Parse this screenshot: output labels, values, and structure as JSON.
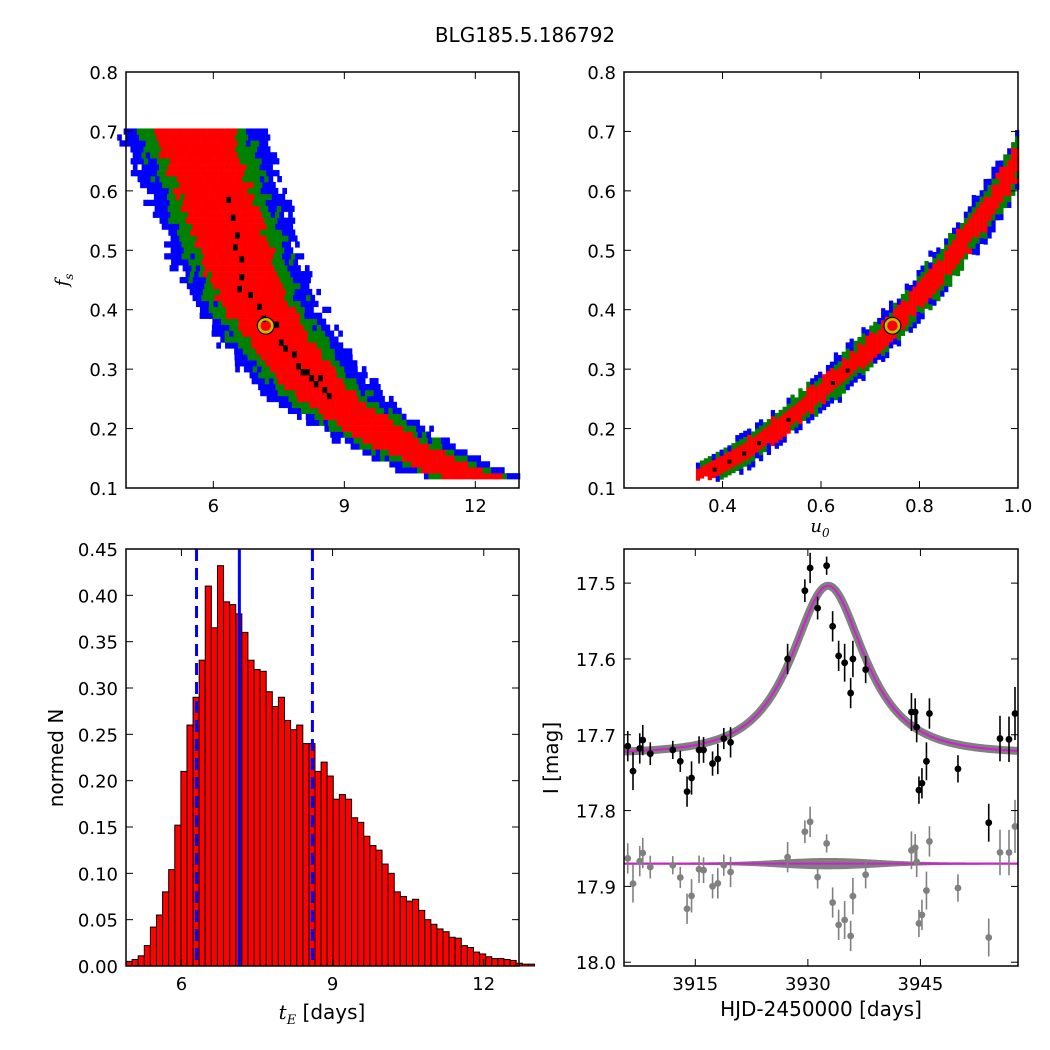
{
  "title": "BLG185.5.186792",
  "chart_data": [
    {
      "id": "fs_vs_tE",
      "type": "heatmap",
      "xlabel": "",
      "ylabel": "f",
      "ylabel_sub": "s",
      "xlim": [
        4.0,
        13.0
      ],
      "ylim": [
        0.1,
        0.8
      ],
      "xticks": [
        6,
        9,
        12
      ],
      "yticks": [
        0.1,
        0.2,
        0.3,
        0.4,
        0.5,
        0.6,
        0.7,
        0.8
      ],
      "levels": [
        {
          "name": "3 sigma",
          "color": "#0000ff"
        },
        {
          "name": "2 sigma",
          "color": "#008000"
        },
        {
          "name": "1 sigma",
          "color": "#ff0000"
        },
        {
          "name": "best cells",
          "color": "#000000"
        }
      ],
      "best_fit": {
        "x": 7.2,
        "y": 0.373,
        "color": "#bfbf00"
      },
      "banana": {
        "spine": [
          [
            5.5,
            0.7
          ],
          [
            5.85,
            0.62
          ],
          [
            6.2,
            0.55
          ],
          [
            6.5,
            0.48
          ],
          [
            6.9,
            0.41
          ],
          [
            7.4,
            0.35
          ],
          [
            8.0,
            0.29
          ],
          [
            8.7,
            0.24
          ],
          [
            9.5,
            0.2
          ],
          [
            10.4,
            0.16
          ],
          [
            11.3,
            0.13
          ],
          [
            12.0,
            0.11
          ]
        ],
        "half_width": [
          0.4,
          0.75,
          1.05,
          1.4
        ],
        "black_cells": [
          [
            6.4,
            0.55
          ],
          [
            6.5,
            0.52
          ],
          [
            6.45,
            0.5
          ],
          [
            6.6,
            0.48
          ],
          [
            6.6,
            0.45
          ],
          [
            6.55,
            0.43
          ],
          [
            6.8,
            0.42
          ],
          [
            7.1,
            0.38
          ],
          [
            7.4,
            0.37
          ],
          [
            7.5,
            0.34
          ],
          [
            7.6,
            0.33
          ],
          [
            7.8,
            0.32
          ],
          [
            7.9,
            0.3
          ],
          [
            8.0,
            0.29
          ],
          [
            8.2,
            0.28
          ],
          [
            8.3,
            0.27
          ],
          [
            8.5,
            0.26
          ],
          [
            8.6,
            0.25
          ],
          [
            8.1,
            0.29
          ],
          [
            8.4,
            0.28
          ],
          [
            6.3,
            0.58
          ],
          [
            7.0,
            0.4
          ]
        ]
      }
    },
    {
      "id": "fs_vs_u0",
      "type": "heatmap",
      "xlabel": "u",
      "xlabel_sub": "0",
      "ylabel": "",
      "xlim": [
        0.2,
        1.0
      ],
      "ylim": [
        0.1,
        0.8
      ],
      "xticks": [
        0.4,
        0.6,
        0.8,
        1.0
      ],
      "xtick_labels": [
        "0.4",
        "0.6",
        "0.8",
        "1.0"
      ],
      "yticks": [
        0.1,
        0.2,
        0.3,
        0.4,
        0.5,
        0.6,
        0.7,
        0.8
      ],
      "best_fit": {
        "x": 0.745,
        "y": 0.373,
        "color": "#bfbf00"
      },
      "band": {
        "spine": [
          [
            0.34,
            0.11
          ],
          [
            0.45,
            0.16
          ],
          [
            0.55,
            0.225
          ],
          [
            0.65,
            0.295
          ],
          [
            0.75,
            0.375
          ],
          [
            0.85,
            0.47
          ],
          [
            0.93,
            0.56
          ],
          [
            1.0,
            0.65
          ]
        ],
        "half_width": [
          0.008,
          0.016,
          0.024,
          0.03
        ]
      }
    },
    {
      "id": "tE_hist",
      "type": "bar",
      "xlabel": "t",
      "xlabel_sub": "E",
      "xlabel_rest": " [days]",
      "ylabel": "normed N",
      "xlim": [
        4.9,
        12.7
      ],
      "ylim": [
        0.0,
        0.45
      ],
      "xticks": [
        6,
        9,
        12
      ],
      "yticks": [
        0.0,
        0.05,
        0.1,
        0.15,
        0.2,
        0.25,
        0.3,
        0.35,
        0.4,
        0.45
      ],
      "ytick_labels": [
        "0.00",
        "0.05",
        "0.10",
        "0.15",
        "0.20",
        "0.25",
        "0.30",
        "0.35",
        "0.40",
        "0.45"
      ],
      "bar_start": 4.9,
      "bar_width": 0.121,
      "values": [
        0.005,
        0.007,
        0.011,
        0.022,
        0.042,
        0.055,
        0.08,
        0.104,
        0.152,
        0.21,
        0.26,
        0.29,
        0.33,
        0.41,
        0.365,
        0.432,
        0.393,
        0.39,
        0.38,
        0.36,
        0.33,
        0.32,
        0.318,
        0.296,
        0.28,
        0.29,
        0.265,
        0.255,
        0.26,
        0.24,
        0.24,
        0.21,
        0.22,
        0.205,
        0.18,
        0.185,
        0.18,
        0.16,
        0.155,
        0.14,
        0.13,
        0.125,
        0.11,
        0.1,
        0.08,
        0.075,
        0.07,
        0.072,
        0.06,
        0.05,
        0.045,
        0.04,
        0.037,
        0.031,
        0.03,
        0.022,
        0.02,
        0.015,
        0.013,
        0.01,
        0.008,
        0.008,
        0.007,
        0.006,
        0.003,
        0.002,
        0.002
      ],
      "bar_color": "#ff0000",
      "median": 7.15,
      "interval": [
        6.3,
        8.6
      ],
      "line_color": "#0000ff"
    },
    {
      "id": "lightcurve",
      "type": "scatter",
      "xlabel": "HJD-2450000 [days]",
      "ylabel": "I [mag]",
      "xlim": [
        3905.5,
        3958.0
      ],
      "ylim": [
        18.005,
        17.455
      ],
      "xticks": [
        3915,
        3930,
        3945
      ],
      "yticks": [
        17.5,
        17.6,
        17.7,
        17.8,
        17.9,
        18.0
      ],
      "ytick_labels": [
        "17.5",
        "17.6",
        "17.7",
        "17.8",
        "17.9",
        "18.0"
      ],
      "model": {
        "t0": 3932.7,
        "u0": 0.745,
        "tE": 7.2,
        "fs": 0.373,
        "base": 17.725,
        "color": "#cc22cc",
        "band_color": "#808080"
      },
      "residual_offset": 17.87,
      "data": [
        [
          3906.0,
          17.715,
          0.02
        ],
        [
          3906.7,
          17.748,
          0.025
        ],
        [
          3907.6,
          17.718,
          0.02
        ],
        [
          3908.0,
          17.707,
          0.02
        ],
        [
          3909.0,
          17.725,
          0.015
        ],
        [
          3912.0,
          17.72,
          0.012
        ],
        [
          3913.0,
          17.735,
          0.014
        ],
        [
          3913.9,
          17.775,
          0.02
        ],
        [
          3914.5,
          17.757,
          0.022
        ],
        [
          3915.5,
          17.72,
          0.018
        ],
        [
          3916.1,
          17.72,
          0.017
        ],
        [
          3917.3,
          17.738,
          0.016
        ],
        [
          3918.0,
          17.732,
          0.02
        ],
        [
          3918.8,
          17.705,
          0.014
        ],
        [
          3919.7,
          17.71,
          0.02
        ],
        [
          3927.3,
          17.6,
          0.02
        ],
        [
          3929.6,
          17.51,
          0.015
        ],
        [
          3930.3,
          17.48,
          0.02
        ],
        [
          3931.3,
          17.533,
          0.015
        ],
        [
          3932.5,
          17.477,
          0.012
        ],
        [
          3933.3,
          17.557,
          0.02
        ],
        [
          3934.1,
          17.596,
          0.02
        ],
        [
          3934.9,
          17.605,
          0.025
        ],
        [
          3935.7,
          17.645,
          0.02
        ],
        [
          3936.0,
          17.6,
          0.024
        ],
        [
          3937.7,
          17.614,
          0.018
        ],
        [
          3943.8,
          17.67,
          0.025
        ],
        [
          3944.3,
          17.67,
          0.018
        ],
        [
          3944.5,
          17.69,
          0.02
        ],
        [
          3944.8,
          17.773,
          0.018
        ],
        [
          3945.2,
          17.764,
          0.02
        ],
        [
          3945.8,
          17.735,
          0.025
        ],
        [
          3946.2,
          17.672,
          0.02
        ],
        [
          3950.0,
          17.745,
          0.018
        ],
        [
          3954.1,
          17.816,
          0.025
        ],
        [
          3955.6,
          17.705,
          0.03
        ],
        [
          3956.8,
          17.706,
          0.03
        ],
        [
          3957.6,
          17.672,
          0.035
        ]
      ]
    }
  ]
}
